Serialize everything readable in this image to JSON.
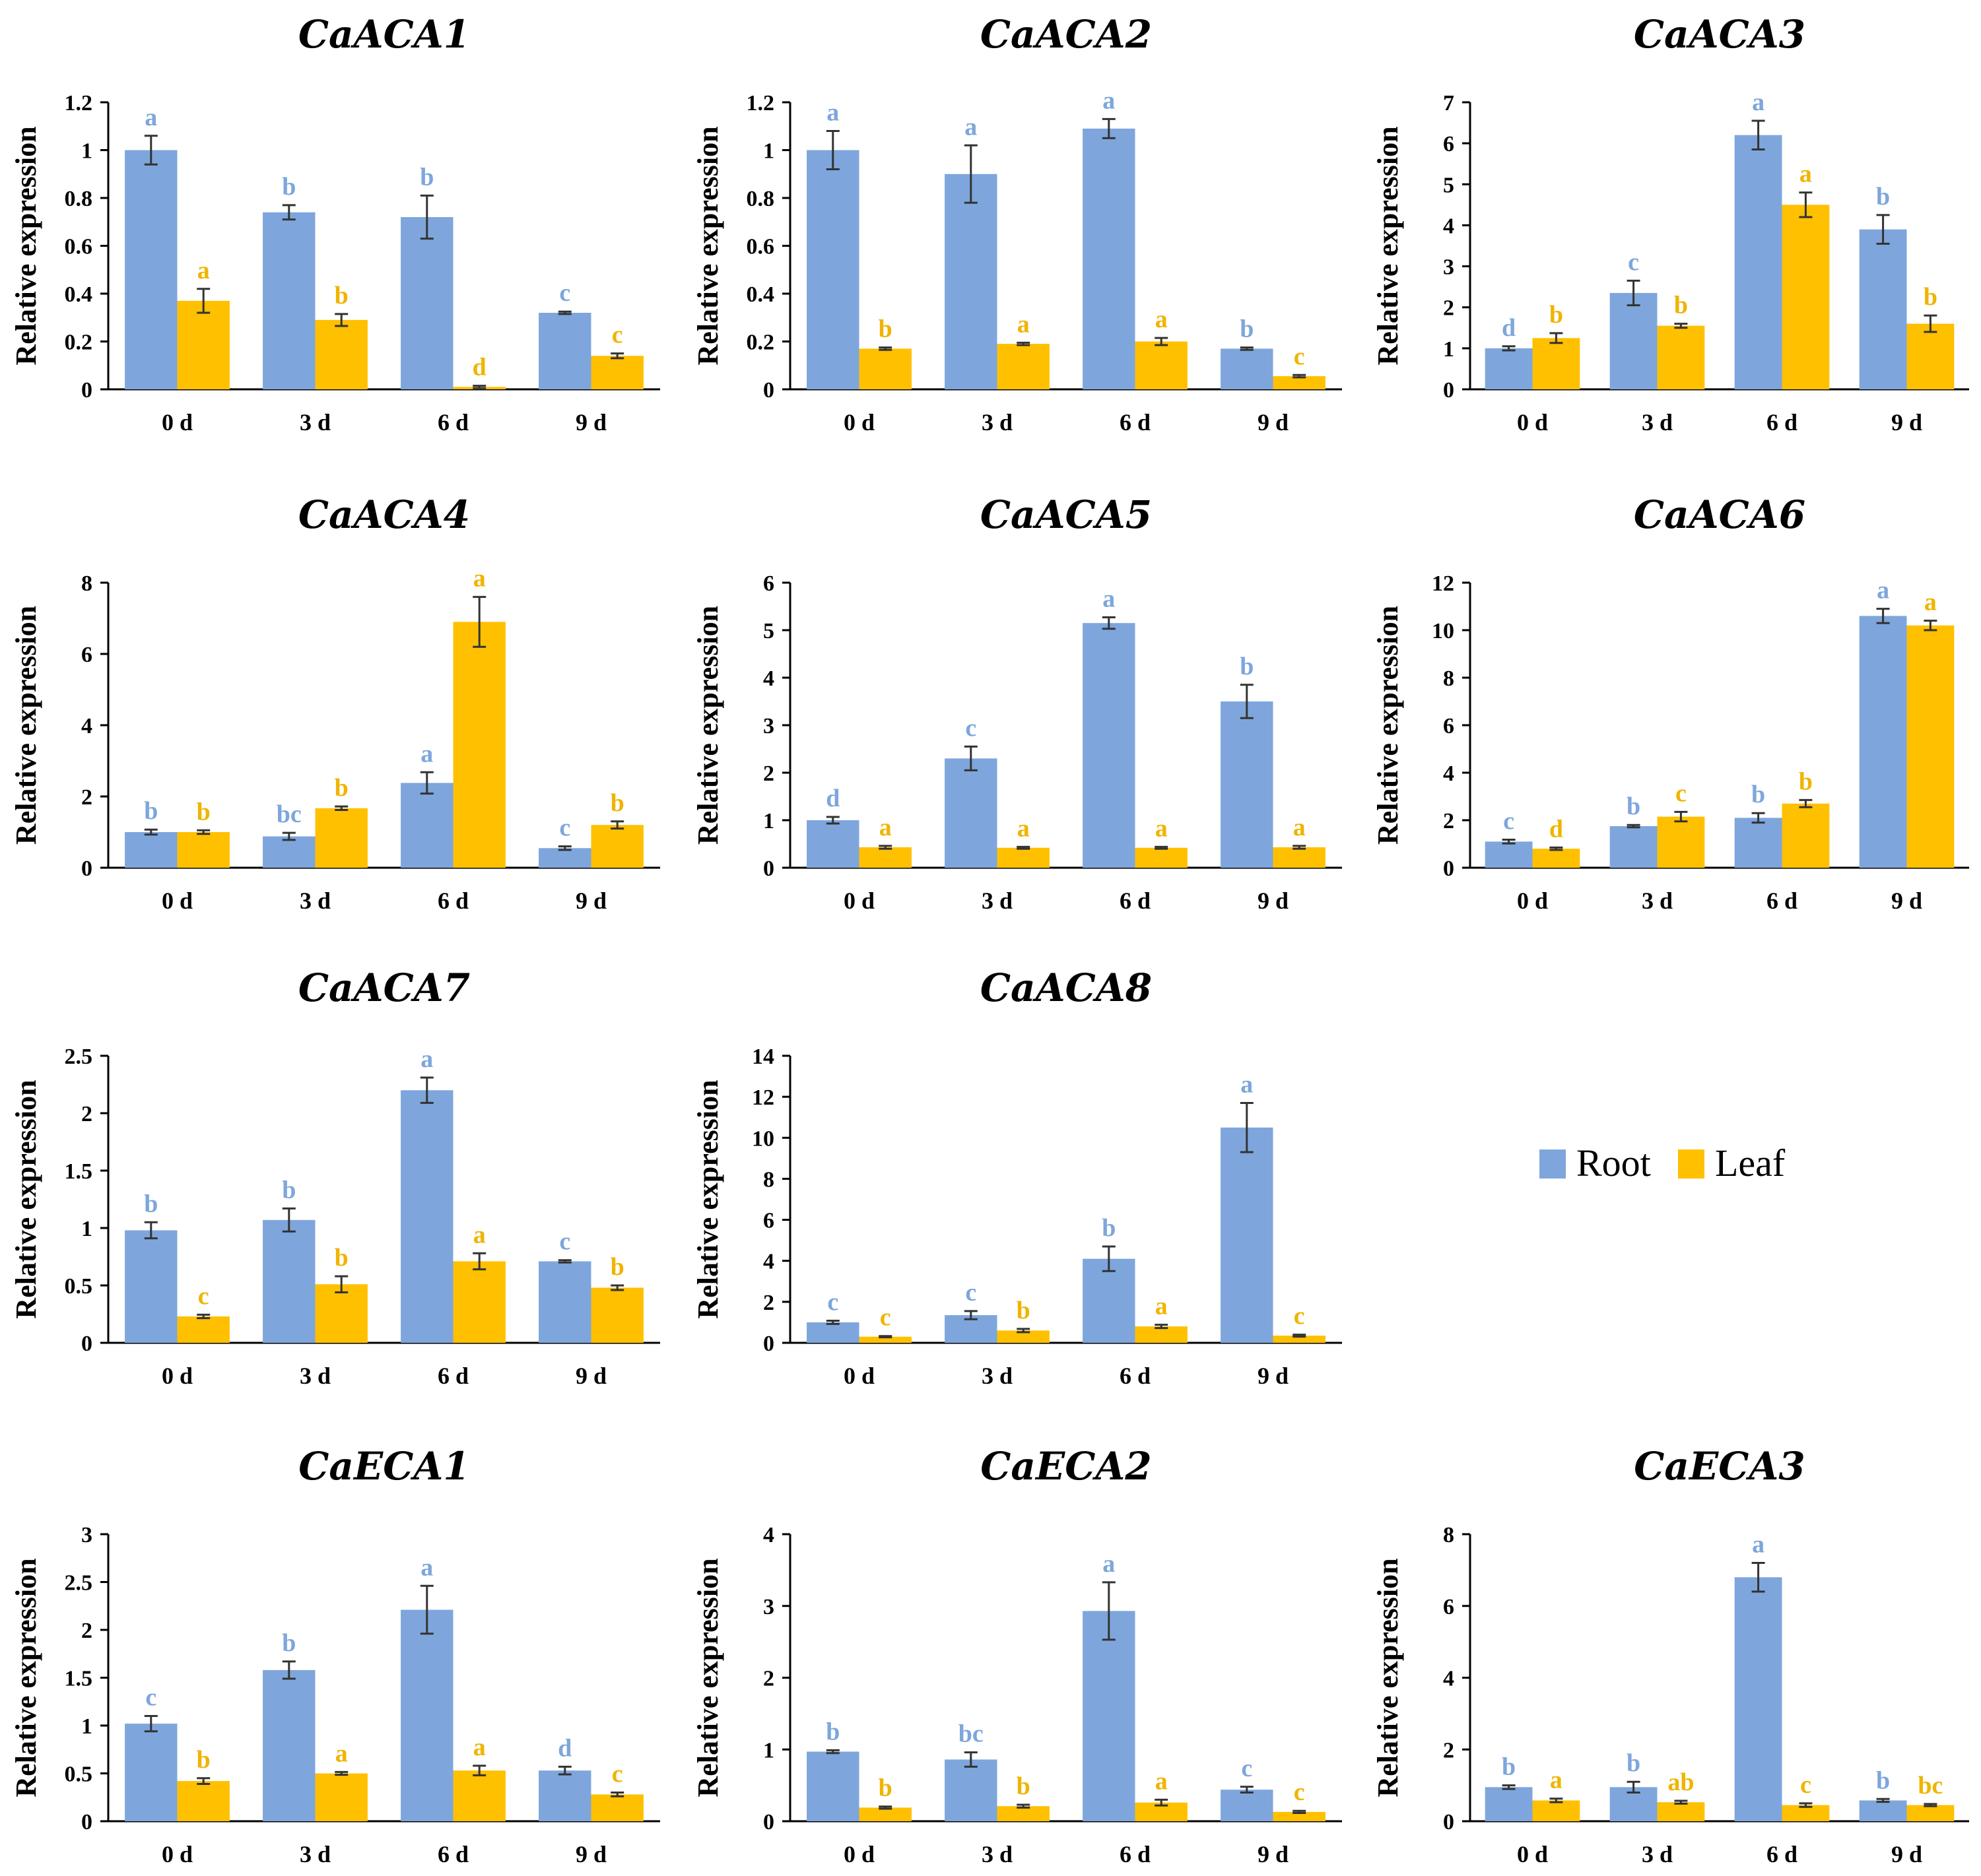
{
  "colors": {
    "root": "#7ea6dc",
    "leaf": "#ffc000",
    "root_text": "#7ea6dc",
    "leaf_text": "#f0b400",
    "axis": "#000000",
    "error": "#333333"
  },
  "legend": {
    "items": [
      {
        "key": "root",
        "label": "Root"
      },
      {
        "key": "leaf",
        "label": "Leaf"
      }
    ],
    "placement": "center-right"
  },
  "chart_data": [
    {
      "type": "bar",
      "title": "CaACA1",
      "ylabel": "Relative expression",
      "xlabel": "",
      "categories": [
        "0 d",
        "3 d",
        "6 d",
        "9 d"
      ],
      "ylim": [
        0,
        1.2
      ],
      "yticks": [
        "0",
        "0.2",
        "0.4",
        "0.6",
        "0.8",
        "1",
        "1.2"
      ],
      "series": [
        {
          "name": "Root",
          "values": [
            1.0,
            0.74,
            0.72,
            0.32
          ],
          "errors": [
            0.06,
            0.03,
            0.09,
            0.005
          ],
          "letters": [
            "a",
            "b",
            "b",
            "c"
          ]
        },
        {
          "name": "Leaf",
          "values": [
            0.37,
            0.29,
            0.01,
            0.14
          ],
          "errors": [
            0.05,
            0.025,
            0.005,
            0.01
          ],
          "letters": [
            "a",
            "b",
            "d",
            "c"
          ]
        }
      ]
    },
    {
      "type": "bar",
      "title": "CaACA2",
      "ylabel": "Relative expression",
      "xlabel": "",
      "categories": [
        "0 d",
        "3 d",
        "6 d",
        "9 d"
      ],
      "ylim": [
        0,
        1.2
      ],
      "yticks": [
        "0",
        "0.2",
        "0.4",
        "0.6",
        "0.8",
        "1",
        "1.2"
      ],
      "series": [
        {
          "name": "Root",
          "values": [
            1.0,
            0.9,
            1.09,
            0.17
          ],
          "errors": [
            0.08,
            0.12,
            0.04,
            0.005
          ],
          "letters": [
            "a",
            "a",
            "a",
            "b"
          ]
        },
        {
          "name": "Leaf",
          "values": [
            0.17,
            0.19,
            0.2,
            0.055
          ],
          "errors": [
            0.005,
            0.005,
            0.015,
            0.005
          ],
          "letters": [
            "b",
            "a",
            "a",
            "c"
          ]
        }
      ]
    },
    {
      "type": "bar",
      "title": "CaACA3",
      "ylabel": "Relative expression",
      "xlabel": "",
      "categories": [
        "0 d",
        "3 d",
        "6 d",
        "9 d"
      ],
      "ylim": [
        0,
        7
      ],
      "yticks": [
        "0",
        "1",
        "2",
        "3",
        "4",
        "5",
        "6",
        "7"
      ],
      "series": [
        {
          "name": "Root",
          "values": [
            1.0,
            2.35,
            6.2,
            3.9
          ],
          "errors": [
            0.05,
            0.3,
            0.35,
            0.35
          ],
          "letters": [
            "d",
            "c",
            "a",
            "b"
          ]
        },
        {
          "name": "Leaf",
          "values": [
            1.25,
            1.55,
            4.5,
            1.6
          ],
          "errors": [
            0.12,
            0.05,
            0.3,
            0.2
          ],
          "letters": [
            "b",
            "b",
            "a",
            "b"
          ]
        }
      ]
    },
    {
      "type": "bar",
      "title": "CaACA4",
      "ylabel": "Relative expression",
      "xlabel": "",
      "categories": [
        "0 d",
        "3 d",
        "6 d",
        "9 d"
      ],
      "ylim": [
        0,
        8
      ],
      "yticks": [
        "0",
        "2",
        "4",
        "6",
        "8"
      ],
      "series": [
        {
          "name": "Root",
          "values": [
            1.0,
            0.88,
            2.38,
            0.55
          ],
          "errors": [
            0.07,
            0.1,
            0.3,
            0.05
          ],
          "letters": [
            "b",
            "bc",
            "a",
            "c"
          ]
        },
        {
          "name": "Leaf",
          "values": [
            1.0,
            1.67,
            6.9,
            1.2
          ],
          "errors": [
            0.05,
            0.05,
            0.7,
            0.1
          ],
          "letters": [
            "b",
            "b",
            "a",
            "b"
          ]
        }
      ]
    },
    {
      "type": "bar",
      "title": "CaACA5",
      "ylabel": "Relative expression",
      "xlabel": "",
      "categories": [
        "0 d",
        "3 d",
        "6 d",
        "9 d"
      ],
      "ylim": [
        0,
        6
      ],
      "yticks": [
        "0",
        "1",
        "2",
        "3",
        "4",
        "5",
        "6"
      ],
      "series": [
        {
          "name": "Root",
          "values": [
            1.0,
            2.3,
            5.15,
            3.5
          ],
          "errors": [
            0.07,
            0.25,
            0.12,
            0.35
          ],
          "letters": [
            "d",
            "c",
            "a",
            "b"
          ]
        },
        {
          "name": "Leaf",
          "values": [
            0.43,
            0.42,
            0.42,
            0.43
          ],
          "errors": [
            0.03,
            0.02,
            0.02,
            0.03
          ],
          "letters": [
            "a",
            "a",
            "a",
            "a"
          ]
        }
      ]
    },
    {
      "type": "bar",
      "title": "CaACA6",
      "ylabel": "Relative expression",
      "xlabel": "",
      "categories": [
        "0 d",
        "3 d",
        "6 d",
        "9 d"
      ],
      "ylim": [
        0,
        12
      ],
      "yticks": [
        "0",
        "2",
        "4",
        "6",
        "8",
        "10",
        "12"
      ],
      "series": [
        {
          "name": "Root",
          "values": [
            1.1,
            1.75,
            2.1,
            10.6
          ],
          "errors": [
            0.08,
            0.05,
            0.2,
            0.3
          ],
          "letters": [
            "c",
            "b",
            "b",
            "a"
          ]
        },
        {
          "name": "Leaf",
          "values": [
            0.8,
            2.15,
            2.7,
            10.2
          ],
          "errors": [
            0.05,
            0.2,
            0.15,
            0.2
          ],
          "letters": [
            "d",
            "c",
            "b",
            "a"
          ]
        }
      ]
    },
    {
      "type": "bar",
      "title": "CaACA7",
      "ylabel": "Relative expression",
      "xlabel": "",
      "categories": [
        "0 d",
        "3 d",
        "6 d",
        "9 d"
      ],
      "ylim": [
        0,
        2.5
      ],
      "yticks": [
        "0",
        "0.5",
        "1",
        "1.5",
        "2",
        "2.5"
      ],
      "series": [
        {
          "name": "Root",
          "values": [
            0.98,
            1.07,
            2.2,
            0.71
          ],
          "errors": [
            0.07,
            0.1,
            0.11,
            0.01
          ],
          "letters": [
            "b",
            "b",
            "a",
            "c"
          ]
        },
        {
          "name": "Leaf",
          "values": [
            0.23,
            0.51,
            0.71,
            0.48
          ],
          "errors": [
            0.015,
            0.07,
            0.07,
            0.02
          ],
          "letters": [
            "c",
            "b",
            "a",
            "b"
          ]
        }
      ]
    },
    {
      "type": "bar",
      "title": "CaACA8",
      "ylabel": "Relative expression",
      "xlabel": "",
      "categories": [
        "0 d",
        "3 d",
        "6 d",
        "9 d"
      ],
      "ylim": [
        0,
        14
      ],
      "yticks": [
        "0",
        "2",
        "4",
        "6",
        "8",
        "10",
        "12",
        "14"
      ],
      "series": [
        {
          "name": "Root",
          "values": [
            1.0,
            1.35,
            4.1,
            10.5
          ],
          "errors": [
            0.08,
            0.2,
            0.6,
            1.2
          ],
          "letters": [
            "c",
            "c",
            "b",
            "a"
          ]
        },
        {
          "name": "Leaf",
          "values": [
            0.3,
            0.6,
            0.8,
            0.35
          ],
          "errors": [
            0.03,
            0.08,
            0.08,
            0.05
          ],
          "letters": [
            "c",
            "b",
            "a",
            "c"
          ]
        }
      ]
    },
    {
      "type": "bar",
      "title": "CaECA1",
      "ylabel": "Relative expression",
      "xlabel": "",
      "categories": [
        "0 d",
        "3 d",
        "6 d",
        "9 d"
      ],
      "ylim": [
        0,
        3
      ],
      "yticks": [
        "0",
        "0.5",
        "1",
        "1.5",
        "2",
        "2.5",
        "3"
      ],
      "series": [
        {
          "name": "Root",
          "values": [
            1.02,
            1.58,
            2.21,
            0.53
          ],
          "errors": [
            0.08,
            0.09,
            0.25,
            0.04
          ],
          "letters": [
            "c",
            "b",
            "a",
            "d"
          ]
        },
        {
          "name": "Leaf",
          "values": [
            0.42,
            0.5,
            0.53,
            0.28
          ],
          "errors": [
            0.03,
            0.015,
            0.05,
            0.02
          ],
          "letters": [
            "b",
            "a",
            "a",
            "c"
          ]
        }
      ]
    },
    {
      "type": "bar",
      "title": "CaECA2",
      "ylabel": "Relative expression",
      "xlabel": "",
      "categories": [
        "0 d",
        "3 d",
        "6 d",
        "9 d"
      ],
      "ylim": [
        0,
        4
      ],
      "yticks": [
        "0",
        "1",
        "2",
        "3",
        "4"
      ],
      "series": [
        {
          "name": "Root",
          "values": [
            0.97,
            0.86,
            2.93,
            0.44
          ],
          "errors": [
            0.02,
            0.1,
            0.4,
            0.04
          ],
          "letters": [
            "b",
            "bc",
            "a",
            "c"
          ]
        },
        {
          "name": "Leaf",
          "values": [
            0.19,
            0.21,
            0.26,
            0.13
          ],
          "errors": [
            0.015,
            0.02,
            0.04,
            0.015
          ],
          "letters": [
            "b",
            "b",
            "a",
            "c"
          ]
        }
      ]
    },
    {
      "type": "bar",
      "title": "CaECA3",
      "ylabel": "Relative expression",
      "xlabel": "",
      "categories": [
        "0 d",
        "3 d",
        "6 d",
        "9 d"
      ],
      "ylim": [
        0,
        8
      ],
      "yticks": [
        "0",
        "2",
        "4",
        "6",
        "8"
      ],
      "series": [
        {
          "name": "Root",
          "values": [
            0.95,
            0.95,
            6.8,
            0.58
          ],
          "errors": [
            0.05,
            0.15,
            0.4,
            0.04
          ],
          "letters": [
            "b",
            "b",
            "a",
            "b"
          ]
        },
        {
          "name": "Leaf",
          "values": [
            0.58,
            0.53,
            0.45,
            0.45
          ],
          "errors": [
            0.05,
            0.04,
            0.05,
            0.03
          ],
          "letters": [
            "a",
            "ab",
            "c",
            "bc"
          ]
        }
      ]
    }
  ]
}
